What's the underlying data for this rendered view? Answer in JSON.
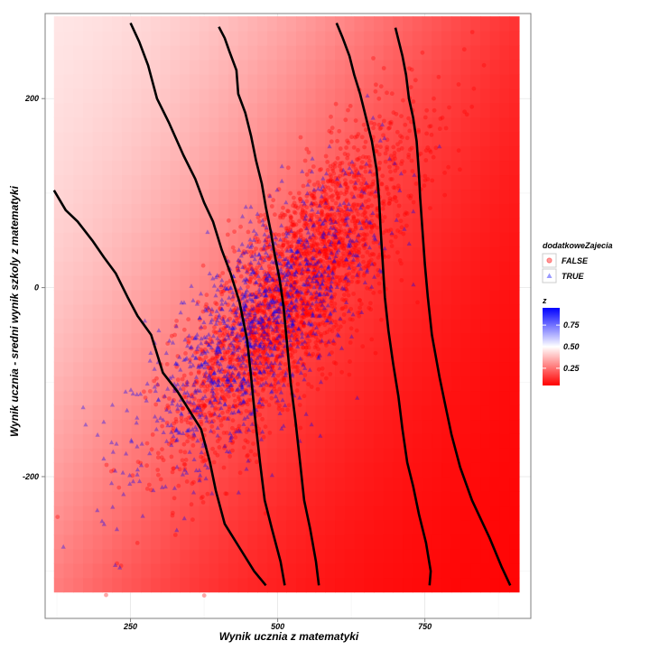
{
  "chart_data": {
    "type": "scatter",
    "title": "",
    "xlabel": "Wynik ucznia z matematyki",
    "ylabel": "Wynik ucznia - sredni wynik szkoly z matematyki",
    "xlim": [
      105,
      930
    ],
    "ylim": [
      -350,
      290
    ],
    "x_ticks": [
      250,
      500,
      750
    ],
    "y_ticks": [
      -200,
      0,
      200
    ],
    "x_tick_labels": [
      "250",
      "500",
      "750"
    ],
    "y_tick_labels": [
      "-200",
      "0",
      "200"
    ],
    "grid": true,
    "legend_position": "right",
    "background_heatmap": {
      "x_range": [
        120,
        910
      ],
      "y_range": [
        -322,
        287
      ],
      "description_value": "z",
      "low_color": "#ff0000",
      "mid_color": "#ffffff",
      "high_color": "#0000ff"
    },
    "contours": [
      [
        [
          120,
          103
        ],
        [
          140,
          82
        ],
        [
          160,
          70
        ],
        [
          185,
          50
        ],
        [
          205,
          32
        ],
        [
          225,
          15
        ],
        [
          245,
          -10
        ],
        [
          262,
          -30
        ],
        [
          285,
          -50
        ],
        [
          305,
          -90
        ],
        [
          330,
          -110
        ],
        [
          355,
          -135
        ],
        [
          370,
          -150
        ],
        [
          385,
          -185
        ],
        [
          395,
          -215
        ],
        [
          410,
          -250
        ],
        [
          435,
          -275
        ],
        [
          460,
          -300
        ],
        [
          480,
          -315
        ]
      ],
      [
        [
          250,
          280
        ],
        [
          265,
          260
        ],
        [
          280,
          235
        ],
        [
          295,
          200
        ],
        [
          315,
          175
        ],
        [
          340,
          140
        ],
        [
          360,
          115
        ],
        [
          375,
          90
        ],
        [
          390,
          70
        ],
        [
          405,
          40
        ],
        [
          420,
          15
        ],
        [
          435,
          -15
        ],
        [
          448,
          -55
        ],
        [
          455,
          -95
        ],
        [
          462,
          -140
        ],
        [
          470,
          -185
        ],
        [
          478,
          -225
        ],
        [
          490,
          -255
        ],
        [
          505,
          -290
        ],
        [
          512,
          -315
        ]
      ],
      [
        [
          400,
          276
        ],
        [
          410,
          264
        ],
        [
          418,
          250
        ],
        [
          430,
          230
        ],
        [
          433,
          205
        ],
        [
          445,
          185
        ],
        [
          455,
          160
        ],
        [
          463,
          135
        ],
        [
          473,
          110
        ],
        [
          480,
          85
        ],
        [
          488,
          60
        ],
        [
          495,
          35
        ],
        [
          503,
          10
        ],
        [
          510,
          -20
        ],
        [
          516,
          -60
        ],
        [
          522,
          -100
        ],
        [
          530,
          -140
        ],
        [
          538,
          -185
        ],
        [
          545,
          -225
        ],
        [
          555,
          -255
        ],
        [
          565,
          -290
        ],
        [
          570,
          -315
        ]
      ],
      [
        [
          600,
          280
        ],
        [
          610,
          265
        ],
        [
          622,
          245
        ],
        [
          630,
          225
        ],
        [
          640,
          205
        ],
        [
          650,
          180
        ],
        [
          660,
          155
        ],
        [
          668,
          125
        ],
        [
          672,
          95
        ],
        [
          675,
          60
        ],
        [
          678,
          30
        ],
        [
          682,
          -10
        ],
        [
          688,
          -45
        ],
        [
          696,
          -80
        ],
        [
          705,
          -115
        ],
        [
          712,
          -150
        ],
        [
          720,
          -185
        ],
        [
          730,
          -210
        ],
        [
          740,
          -240
        ],
        [
          752,
          -270
        ],
        [
          760,
          -300
        ],
        [
          758,
          -315
        ]
      ],
      [
        [
          700,
          275
        ],
        [
          706,
          260
        ],
        [
          712,
          245
        ],
        [
          718,
          225
        ],
        [
          723,
          200
        ],
        [
          730,
          180
        ],
        [
          736,
          155
        ],
        [
          740,
          120
        ],
        [
          742,
          95
        ],
        [
          746,
          60
        ],
        [
          750,
          25
        ],
        [
          755,
          -10
        ],
        [
          762,
          -50
        ],
        [
          775,
          -95
        ],
        [
          785,
          -125
        ],
        [
          795,
          -155
        ],
        [
          810,
          -190
        ],
        [
          830,
          -225
        ],
        [
          845,
          -245
        ],
        [
          860,
          -265
        ],
        [
          880,
          -295
        ],
        [
          895,
          -315
        ]
      ]
    ],
    "series": [
      {
        "name": "FALSE",
        "marker": "circle",
        "color": "#ff0000",
        "opacity": 0.35,
        "distribution": {
          "x_mean": 530,
          "y_mean": 0,
          "x_sd": 100,
          "y_sd": 85,
          "correlation": 0.78,
          "n": 2600
        }
      },
      {
        "name": "TRUE",
        "marker": "triangle",
        "color": "#0000ff",
        "opacity": 0.35,
        "distribution": {
          "x_mean": 470,
          "y_mean": -40,
          "x_sd": 100,
          "y_sd": 75,
          "correlation": 0.75,
          "n": 1200
        }
      }
    ],
    "legends": {
      "group": {
        "title": "dodatkoweZajecia",
        "items": [
          "FALSE",
          "TRUE"
        ]
      },
      "colorbar": {
        "title": "z",
        "labels": [
          "0.75",
          "0.50",
          "0.25"
        ],
        "values": [
          0.75,
          0.5,
          0.25
        ]
      }
    }
  }
}
